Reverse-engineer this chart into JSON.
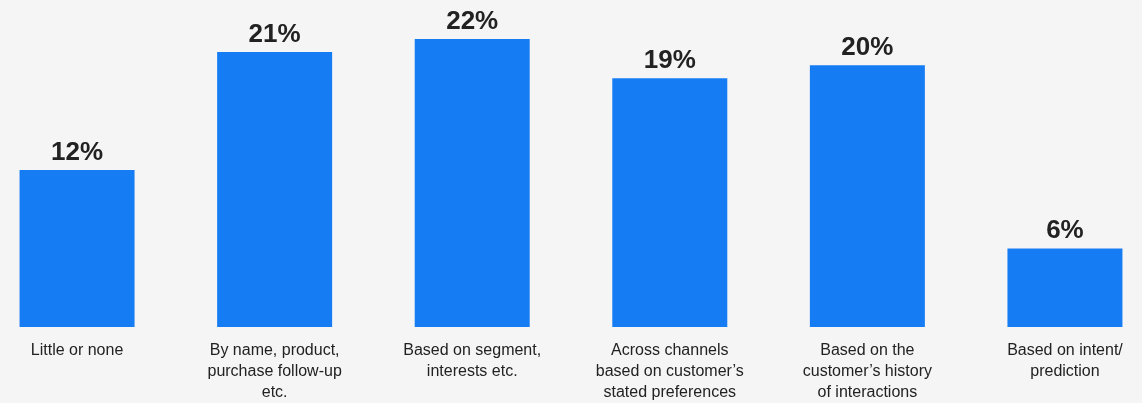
{
  "chart_data": {
    "type": "bar",
    "categories": [
      "Little or none",
      "By name, product, purchase follow-up etc.",
      "Based on segment, interests etc.",
      "Across channels based on customer’s stated preferences",
      "Based on the customer’s history of interactions",
      "Based on intent/ prediction"
    ],
    "values": [
      12,
      21,
      22,
      19,
      20,
      6
    ],
    "color": "#167cf4",
    "value_labels": [
      "12%",
      "21%",
      "22%",
      "19%",
      "20%",
      "6%"
    ]
  }
}
